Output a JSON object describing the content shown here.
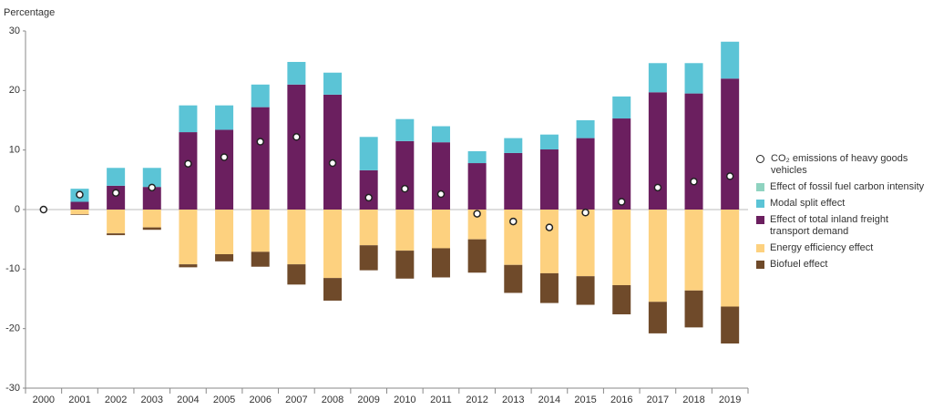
{
  "chart_data": {
    "type": "bar",
    "stacked": true,
    "y_label": "Percentage",
    "categories": [
      "2000",
      "2001",
      "2002",
      "2003",
      "2004",
      "2005",
      "2006",
      "2007",
      "2008",
      "2009",
      "2010",
      "2011",
      "2012",
      "2013",
      "2014",
      "2015",
      "2016",
      "2017",
      "2018",
      "2019"
    ],
    "ylim": [
      -30,
      30
    ],
    "yticks": [
      -30,
      -20,
      -10,
      0,
      10,
      20,
      30
    ],
    "series": [
      {
        "name": "CO₂ emissions of heavy goods vehicles",
        "type": "scatter",
        "color": "#ffffff",
        "values": [
          0,
          2.5,
          2.8,
          3.7,
          7.7,
          8.8,
          11.4,
          12.2,
          7.8,
          2,
          3.5,
          2.6,
          -0.7,
          -2,
          -3,
          -0.5,
          1.3,
          3.7,
          4.7,
          5.6
        ]
      },
      {
        "name": "Effect of fossil fuel carbon intensity",
        "type": "bar",
        "color": "#8fd3c0",
        "values": [
          0,
          0,
          0,
          0,
          0,
          0,
          0,
          0,
          0,
          0,
          0,
          0,
          0,
          0,
          0,
          0,
          0,
          0,
          0,
          0
        ]
      },
      {
        "name": "Modal split effect",
        "type": "bar",
        "color": "#5bc4d6",
        "values": [
          0,
          2.2,
          3,
          3.2,
          4.5,
          4.1,
          3.8,
          3.8,
          3.7,
          5.6,
          3.7,
          2.7,
          2,
          2.5,
          2.5,
          3,
          3.7,
          4.9,
          5.1,
          6.2
        ]
      },
      {
        "name": "Effect of total inland freight transport demand",
        "type": "bar",
        "color": "#6b1f5f",
        "values": [
          0,
          1.3,
          4,
          3.8,
          13,
          13.4,
          17.2,
          21,
          19.3,
          6.6,
          11.5,
          11.3,
          7.8,
          9.5,
          10.1,
          12,
          15.3,
          19.7,
          19.5,
          22
        ]
      },
      {
        "name": "Energy efficiency effect",
        "type": "bar",
        "color": "#fdd17f",
        "values": [
          0,
          -0.8,
          -4,
          -3,
          -9.2,
          -7.5,
          -7.1,
          -9.2,
          -11.5,
          -6,
          -6.9,
          -6.5,
          -5,
          -9.3,
          -10.7,
          -11.2,
          -12.7,
          -15.5,
          -13.6,
          -16.3
        ]
      },
      {
        "name": "Biofuel effect",
        "type": "bar",
        "color": "#6f4a2a",
        "values": [
          0,
          -0.1,
          -0.3,
          -0.4,
          -0.5,
          -1.2,
          -2.5,
          -3.4,
          -3.8,
          -4.2,
          -4.7,
          -4.9,
          -5.6,
          -4.7,
          -5,
          -4.8,
          -4.9,
          -5.3,
          -6.2,
          -6.2
        ]
      }
    ]
  }
}
